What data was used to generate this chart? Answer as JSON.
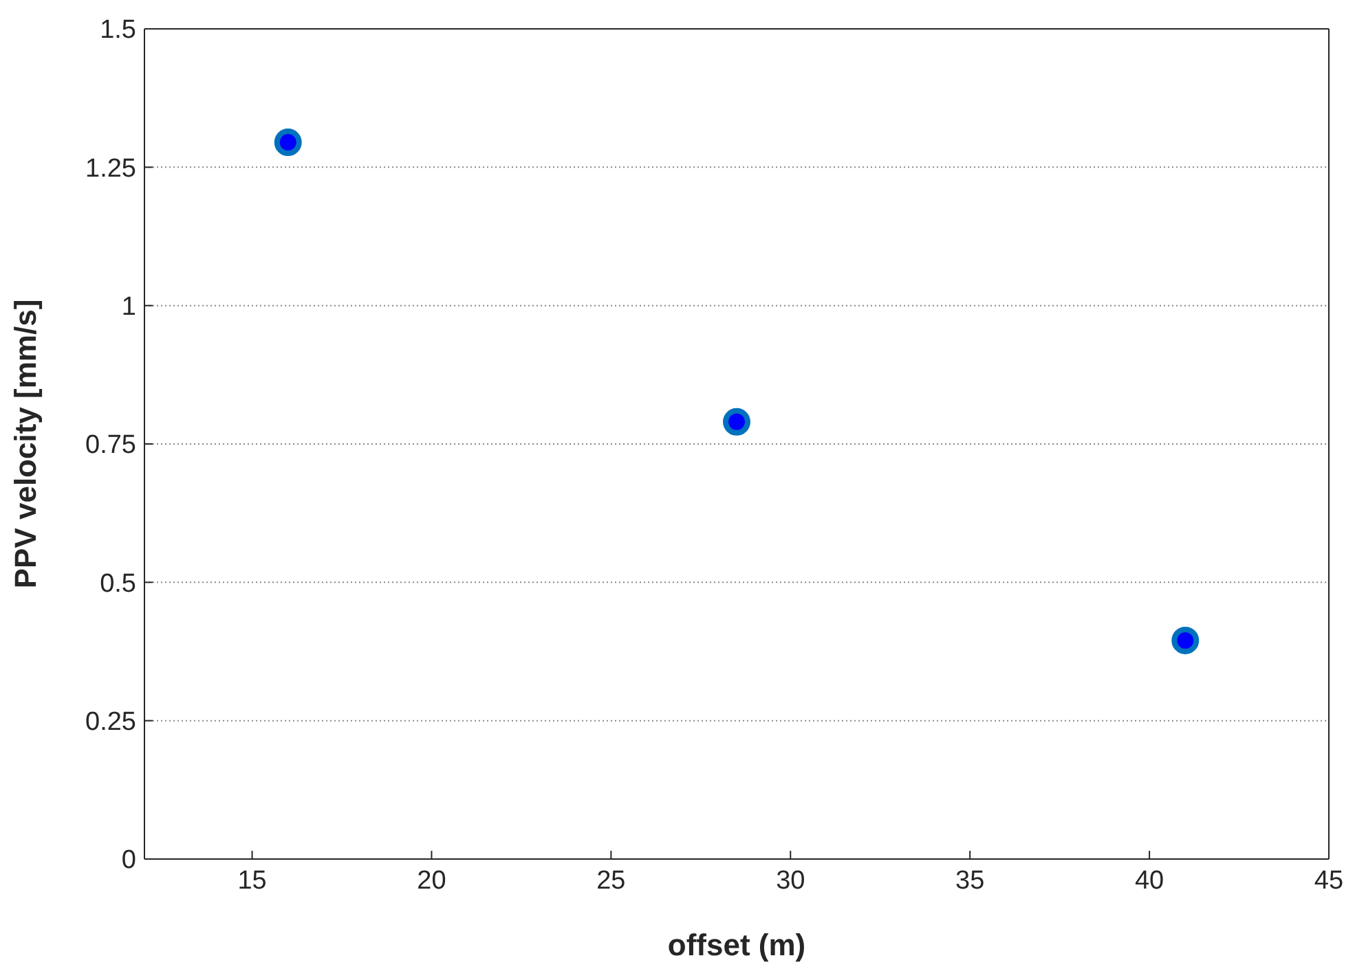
{
  "chart_data": {
    "type": "scatter",
    "xlabel": "offset (m)",
    "ylabel": "PPV velocity [mm/s]",
    "x": [
      16,
      28.5,
      41
    ],
    "series": [
      {
        "color": "#0000ff",
        "values": [
          1.295,
          0.79,
          0.395
        ]
      }
    ],
    "xlim": [
      12,
      45
    ],
    "xticks": [
      15,
      20,
      25,
      30,
      35,
      40,
      45
    ],
    "ylim": [
      0,
      1.5
    ],
    "yticks": [
      0,
      0.25,
      0.5,
      0.75,
      1,
      1.25,
      1.5
    ],
    "grid": "y",
    "marker": "circle"
  }
}
